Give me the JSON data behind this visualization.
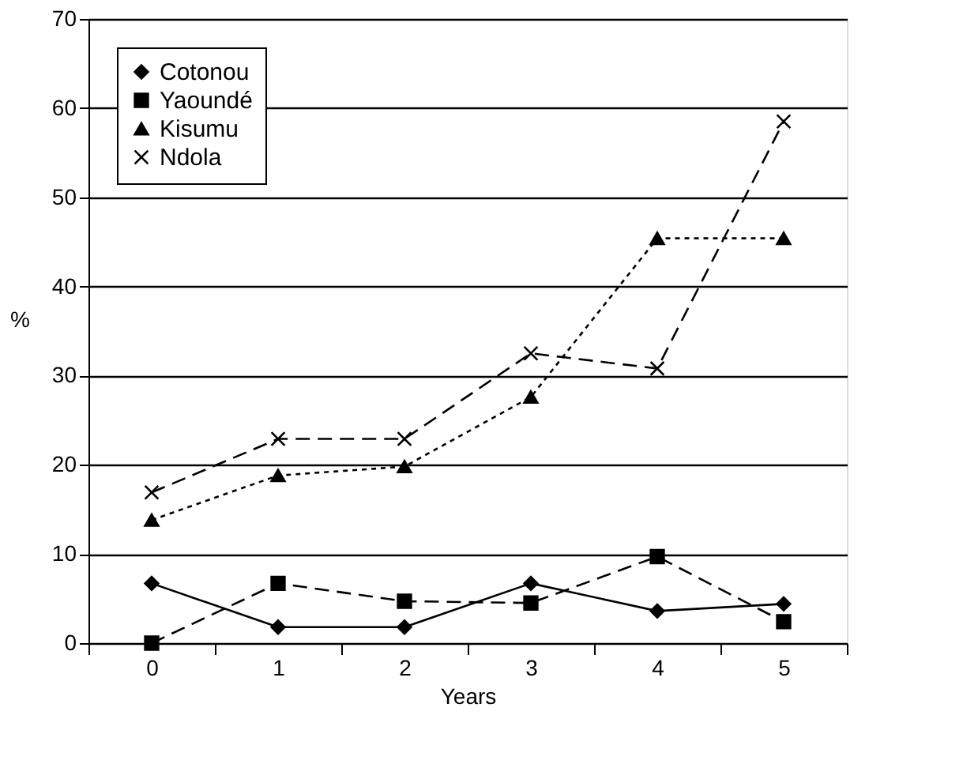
{
  "chart_data": {
    "type": "line",
    "xlabel": "Years",
    "ylabel": "%",
    "categories": [
      "0",
      "1",
      "2",
      "3",
      "4",
      "5"
    ],
    "series": [
      {
        "name": "Cotonou",
        "color": "#000000",
        "marker": "diamond",
        "line_style": "solid",
        "values": [
          6.7,
          1.8,
          1.8,
          6.7,
          3.6,
          4.4
        ]
      },
      {
        "name": "Yaoundé",
        "color": "#000000",
        "marker": "square",
        "line_style": "dashed",
        "values": [
          0,
          6.7,
          4.7,
          4.5,
          9.7,
          2.4
        ]
      },
      {
        "name": "Kisumu",
        "color": "#000000",
        "marker": "triangle",
        "line_style": "dotted",
        "values": [
          13.8,
          18.8,
          19.8,
          27.6,
          45.4,
          45.4
        ]
      },
      {
        "name": "Ndola",
        "color": "#000000",
        "marker": "cross",
        "line_style": "dashed",
        "values": [
          16.9,
          22.9,
          22.9,
          32.5,
          30.8,
          58.5
        ]
      }
    ],
    "ylim": [
      0,
      70
    ],
    "yticks": [
      0,
      10,
      20,
      30,
      40,
      50,
      60,
      70
    ],
    "grid": "y",
    "legend": "top left"
  }
}
